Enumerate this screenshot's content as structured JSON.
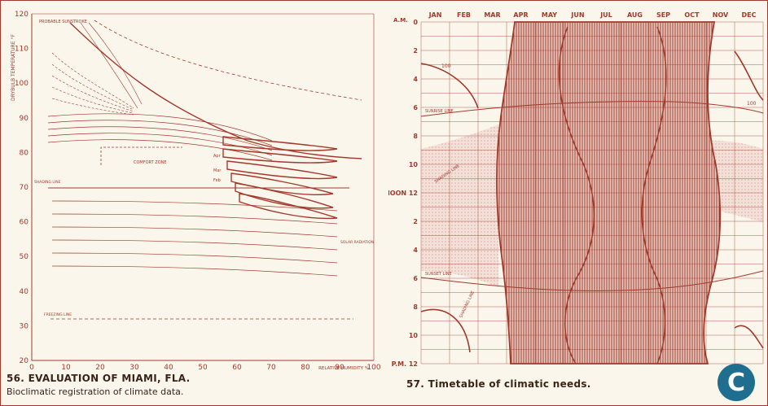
{
  "left_figure": {
    "caption_title": "56. EVALUATION OF MIAMI, FLA.",
    "caption_subtitle": "Bioclimatic registration of climate data.",
    "y_axis_label": "DRYBULB TEMPERATURE °F",
    "x_axis_label": "RELATIVE HUMIDITY %",
    "y_ticks": [
      "20",
      "30",
      "40",
      "50",
      "60",
      "70",
      "80",
      "90",
      "100",
      "110",
      "120"
    ],
    "x_ticks": [
      "0",
      "10",
      "20",
      "30",
      "40",
      "50",
      "60",
      "70",
      "80",
      "90",
      "100"
    ],
    "labels": {
      "probable_sunstroke": "PROBABLE SUNSTROKE",
      "comfort_zone": "COMFORT ZONE",
      "shading_line": "SHADING LINE",
      "freezing_line": "FREEZING LINE",
      "solar_radiation": "SOLAR RADIATION",
      "months": [
        "Apr",
        "Mar",
        "Feb"
      ]
    }
  },
  "right_figure": {
    "caption_title": "57. Timetable of climatic needs.",
    "months": [
      "JAN",
      "FEB",
      "MAR",
      "APR",
      "MAY",
      "JUN",
      "JUL",
      "AUG",
      "SEP",
      "OCT",
      "NOV",
      "DEC"
    ],
    "hours": [
      "0",
      "2",
      "4",
      "6",
      "8",
      "10",
      "NOON 12",
      "2",
      "4",
      "6",
      "8",
      "10",
      "P.M. 12"
    ],
    "am_label": "A.M.",
    "labels": {
      "sunrise_line": "SUNRISE LINE",
      "sunset_line": "SUNSET LINE",
      "shading_line_top": "SHADING LINE",
      "shading_line_bottom": "SHADING LINE",
      "value_100_left": "100",
      "value_100_right": "100"
    }
  },
  "badge": "C",
  "colors": {
    "ink": "#a23a2c",
    "paper": "#fbf6ec",
    "badge": "#1f6e8f",
    "text": "#3a241a"
  }
}
